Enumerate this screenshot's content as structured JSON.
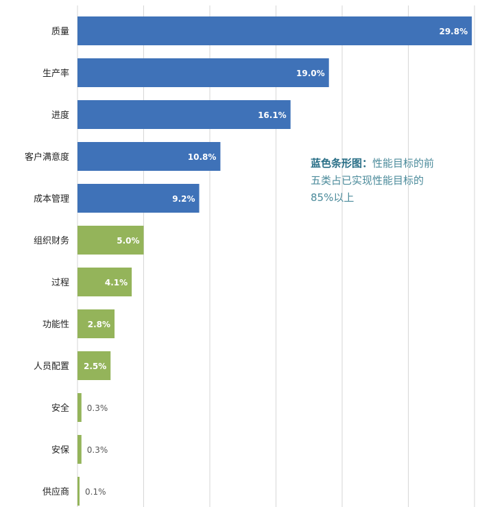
{
  "chart_data": {
    "type": "bar",
    "orientation": "horizontal",
    "categories": [
      "质量",
      "生产率",
      "进度",
      "客户满意度",
      "成本管理",
      "组织财务",
      "过程",
      "功能性",
      "人员配置",
      "安全",
      "安保",
      "供应商"
    ],
    "values": [
      29.8,
      19.0,
      16.1,
      10.8,
      9.2,
      5.0,
      4.1,
      2.8,
      2.5,
      0.3,
      0.3,
      0.1
    ],
    "value_labels": [
      "29.8%",
      "19.0%",
      "16.1%",
      "10.8%",
      "9.2%",
      "5.0%",
      "4.1%",
      "2.8%",
      "2.5%",
      "0.3%",
      "0.3%",
      "0.1%"
    ],
    "groups": [
      "blue",
      "blue",
      "blue",
      "blue",
      "blue",
      "green",
      "green",
      "green",
      "green",
      "green",
      "green",
      "green"
    ],
    "xlim": [
      0,
      30
    ],
    "grid": true,
    "title": "",
    "xlabel": "",
    "ylabel": ""
  },
  "annotation": {
    "title": "蓝色条形图：",
    "line1": "性能目标的前",
    "line2": "五类占已实现性能目标的",
    "line3": "85%以上"
  },
  "colors": {
    "blue": "#3f72b8",
    "green": "#94b45a",
    "grid": "#d6d6d6",
    "label_inside": "#ffffff",
    "label_outside": "#555555"
  }
}
